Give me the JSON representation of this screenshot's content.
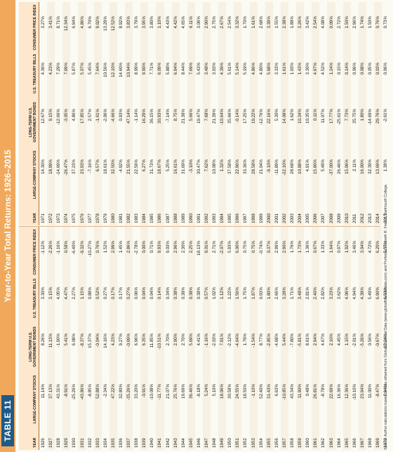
{
  "tag": "TABLE 11",
  "title": "Year-to-Year Total Returns: 1926–2015",
  "headers": [
    "YEAR",
    "LARGE-COMPANY STOCKS",
    "LONG-TERM U.S. GOVERNMENT BONDS",
    "U.S. TREASURY BILLS",
    "CONSUMER PRICE INDEX"
  ],
  "headers_right": [
    "YEAR",
    "LARGE-COMPANY STOCKS",
    "LONG-TERM U.S. GOVERNMENT BONDS",
    "U.S. TREASURY BILLS",
    "CONSUMER PRICE INDEX"
  ],
  "left_rows": [
    [
      "1926",
      "11.14%",
      "8.26%",
      "3.30%",
      "-1.12%"
    ],
    [
      "1927",
      "37.13%",
      "11.13%",
      "3.15%",
      "-2.26%"
    ],
    [
      "1928",
      "43.31%",
      "-1.90%",
      "4.05%",
      "-1.16%"
    ],
    [
      "1929",
      "-8.91%",
      "5.41%",
      "4.47%",
      "0.58%"
    ],
    [
      "1930",
      "-25.26%",
      "6.08%",
      "2.27%",
      "-6.40%"
    ],
    [
      "1931",
      "-43.86%",
      "-8.37%",
      "1.15%",
      "-9.32%"
    ],
    [
      "1932",
      "-8.85%",
      "15.37%",
      "0.88%",
      "-10.27%"
    ],
    [
      "1933",
      "52.88%",
      "-0.04%",
      "0.52%",
      "0.76%"
    ],
    [
      "1934",
      "-2.34%",
      "14.16%",
      "0.27%",
      "1.52%"
    ],
    [
      "1935",
      "47.22%",
      "4.23%",
      "0.17%",
      "2.99%"
    ],
    [
      "1936",
      "32.80%",
      "9.27%",
      "0.17%",
      "1.45%"
    ],
    [
      "1937",
      "-35.26%",
      "-0.69%",
      "0.27%",
      "2.86%"
    ],
    [
      "1938",
      "33.20%",
      "6.96%",
      "0.06%",
      "-2.78%"
    ],
    [
      "1939",
      "-0.91%",
      "6.35%",
      "0.04%",
      "0.00%"
    ],
    [
      "1940",
      "-10.08%",
      "11.85%",
      "0.04%",
      "0.71%"
    ],
    [
      "1941",
      "-11.77%",
      "-10.51%",
      "0.14%",
      "9.93%"
    ],
    [
      "1942",
      "21.07%",
      "2.70%",
      "0.34%",
      "9.03%"
    ],
    [
      "1943",
      "25.76%",
      "2.90%",
      "0.38%",
      "2.96%"
    ],
    [
      "1944",
      "19.69%",
      "2.70%",
      "0.38%",
      "2.30%"
    ],
    [
      "1945",
      "36.46%",
      "5.69%",
      "0.38%",
      "2.25%"
    ],
    [
      "1946",
      "-8.18%",
      "4.41%",
      "0.38%",
      "18.13%"
    ],
    [
      "1947",
      "5.24%",
      "-1.16%",
      "0.57%",
      "9.01%"
    ],
    [
      "1948",
      "5.10%",
      "-2.03%",
      "1.02%",
      "2.71%"
    ],
    [
      "1949",
      "18.06%",
      "7.91%",
      "1.12%",
      "-2.07%"
    ],
    [
      "1950",
      "30.58%",
      "-2.12%",
      "1.22%",
      "5.93%"
    ],
    [
      "1951",
      "24.55%",
      "-4.64%",
      "1.56%",
      "6.00%"
    ],
    [
      "1952",
      "18.50%",
      "1.79%",
      "1.75%",
      "0.75%"
    ],
    [
      "1953",
      "-1.10%",
      "-1.54%",
      "1.87%",
      "0.75%"
    ],
    [
      "1954",
      "52.40%",
      "8.77%",
      "0.93%",
      "-0.74%"
    ],
    [
      "1955",
      "31.43%",
      "-2.85%",
      "1.80%",
      "0.37%"
    ],
    [
      "1956",
      "6.63%",
      "-4.68%",
      "2.66%",
      "2.99%"
    ],
    [
      "1957",
      "-10.85%",
      "5.44%",
      "3.28%",
      "2.90%"
    ],
    [
      "1958",
      "43.34%",
      "-7.80%",
      "1.71%",
      "1.76%"
    ],
    [
      "1959",
      "11.90%",
      "-5.81%",
      "3.48%",
      "1.73%"
    ],
    [
      "1960",
      "0.48%",
      "8.61%",
      "2.81%",
      "1.36%"
    ],
    [
      "1961",
      "26.81%",
      "2.94%",
      "2.40%",
      "0.67%"
    ],
    [
      "1962",
      "-8.78%",
      "4.67%",
      "2.82%",
      "1.33%"
    ],
    [
      "1963",
      "22.69%",
      "2.10%",
      "3.23%",
      "1.64%"
    ],
    [
      "1964",
      "16.36%",
      "4.45%",
      "3.62%",
      "0.97%"
    ],
    [
      "1965",
      "12.36%",
      "1.15%",
      "4.06%",
      "1.92%"
    ],
    [
      "1966",
      "-10.10%",
      "-2.01%",
      "4.94%",
      "3.46%"
    ],
    [
      "1967",
      "23.94%",
      "-5.26%",
      "4.39%",
      "3.04%"
    ],
    [
      "1968",
      "11.00%",
      "0.56%",
      "5.49%",
      "4.72%"
    ],
    [
      "1969",
      "-8.47%",
      "-0.67%",
      "6.90%",
      "6.20%"
    ],
    [
      "1970",
      "3.94%",
      "12.24%",
      "6.50%",
      "5.57%"
    ]
  ],
  "right_rows": [
    [
      "1971",
      "14.30%",
      "12.67%",
      "4.36%",
      "3.27%"
    ],
    [
      "1972",
      "18.99%",
      "9.15%",
      "4.23%",
      "3.41%"
    ],
    [
      "1973",
      "-14.69%",
      "-12.66%",
      "7.29%",
      "8.71%"
    ],
    [
      "1974",
      "-26.47%",
      "-3.05%",
      "7.99%",
      "12.34%"
    ],
    [
      "1975",
      "37.23%",
      "4.86%",
      "5.87%",
      "6.94%"
    ],
    [
      "1976",
      "23.93%",
      "17.85%",
      "5.07%",
      "4.86%"
    ],
    [
      "1977",
      "-7.16%",
      "2.57%",
      "5.45%",
      "6.70%"
    ],
    [
      "1978",
      "6.57%",
      "-1.61%",
      "7.64%",
      "9.02%"
    ],
    [
      "1979",
      "18.61%",
      "-2.06%",
      "10.56%",
      "13.29%"
    ],
    [
      "1980",
      "32.50%",
      "-4.66%",
      "12.10%",
      "12.52%"
    ],
    [
      "1981",
      "-4.92%",
      "0.93%",
      "14.60%",
      "8.92%"
    ],
    [
      "1982",
      "21.55%",
      "47.14%",
      "10.94%",
      "3.83%"
    ],
    [
      "1983",
      "22.56%",
      "-1.14%",
      "8.99%",
      "3.79%"
    ],
    [
      "1984",
      "6.27%",
      "16.29%",
      "9.90%",
      "3.95%"
    ],
    [
      "1985",
      "31.73%",
      "36.15%",
      "7.71%",
      "3.80%"
    ],
    [
      "1986",
      "18.67%",
      "30.93%",
      "6.09%",
      "1.10%"
    ],
    [
      "1987",
      "5.25%",
      "-7.14%",
      "5.88%",
      "4.43%"
    ],
    [
      "1988",
      "16.61%",
      "8.75%",
      "6.94%",
      "4.42%"
    ],
    [
      "1989",
      "31.69%",
      "21.38%",
      "8.44%",
      "4.65%"
    ],
    [
      "1990",
      "-3.10%",
      "5.66%",
      "7.69%",
      "6.11%"
    ],
    [
      "1991",
      "30.47%",
      "19.47%",
      "5.43%",
      "3.06%"
    ],
    [
      "1992",
      "7.62%",
      "7.68%",
      "3.48%",
      "2.90%"
    ],
    [
      "1993",
      "10.08%",
      "21.39%",
      "3.03%",
      "2.75%"
    ],
    [
      "1994",
      "1.32%",
      "-10.64%",
      "4.39%",
      "2.67%"
    ],
    [
      "1995",
      "37.58%",
      "35.66%",
      "5.61%",
      "2.54%"
    ],
    [
      "1996",
      "22.96%",
      "-0.14%",
      "5.14%",
      "3.32%"
    ],
    [
      "1997",
      "33.36%",
      "17.25%",
      "5.19%",
      "1.70%"
    ],
    [
      "1998",
      "28.58%",
      "19.22%",
      "4.86%",
      "1.61%"
    ],
    [
      "1999",
      "21.04%",
      "-12.76%",
      "4.80%",
      "2.68%"
    ],
    [
      "2000",
      "-9.10%",
      "22.16%",
      "5.98%",
      "3.39%"
    ],
    [
      "2001",
      "-11.89%",
      "5.30%",
      "3.33%",
      "1.55%"
    ],
    [
      "2002",
      "-22.10%",
      "14.08%",
      "1.61%",
      "2.38%"
    ],
    [
      "2003",
      "28.68%",
      "1.62%",
      "1.03%",
      "1.88%"
    ],
    [
      "2004",
      "10.88%",
      "10.34%",
      "1.43%",
      "3.26%"
    ],
    [
      "2005",
      "4.91%",
      "10.35%",
      "3.30%",
      "3.42%"
    ],
    [
      "2006",
      "15.80%",
      "0.11%",
      "4.97%",
      "2.54%"
    ],
    [
      "2007",
      "5.49%",
      "11.07%",
      "4.52%",
      "4.08%"
    ],
    [
      "2008",
      "-37.00%",
      "17.77%",
      "1.24%",
      "0.09%"
    ],
    [
      "2009",
      "26.46%",
      "-25.61%",
      "0.15%",
      "2.72%"
    ],
    [
      "2010",
      "15.06%",
      "7.73%",
      "0.14%",
      "1.50%"
    ],
    [
      "2011",
      "2.11%",
      "35.75%",
      "0.06%",
      "2.96%"
    ],
    [
      "2012",
      "16.00%",
      "1.80%",
      "0.08%",
      "1.74%"
    ],
    [
      "2013",
      "32.39%",
      "-14.69%",
      "0.05%",
      "1.50%"
    ],
    [
      "2014",
      "13.69%",
      "29.76%",
      "0.03%",
      "0.76%"
    ],
    [
      "2015",
      "1.38%",
      "-2.61%",
      "0.06%",
      "0.73%"
    ]
  ],
  "footer": "Source: Author calculations based on data obtained from Global Financial Data (www.globalfinancialdata.com) and Professor Kenneth R. French, Dartmouth College."
}
